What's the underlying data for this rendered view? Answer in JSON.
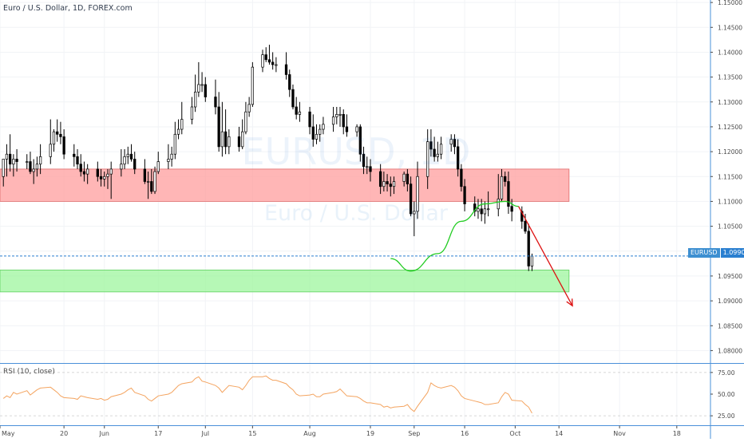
{
  "legend": {
    "text": "Euro / U.S. Dollar, 1D, FOREX.com"
  },
  "watermark": {
    "line1": "EURUSD, 1D",
    "line2": "Euro / U.S. Dollar"
  },
  "rsi": {
    "label": "RSI (10, close)",
    "ticks": [
      "75.00",
      "50.00",
      "25.00"
    ],
    "values": [
      75,
      50,
      25
    ]
  },
  "price_tag": {
    "symbol": "EURUSD",
    "value": "1.09901"
  },
  "colors": {
    "bull": "#ffffff",
    "bear": "#000000",
    "wick": "#000000",
    "resistance_zone": "#ff9d9d",
    "support_zone": "#9df59d",
    "projection_up": "#22cc22",
    "projection_down": "#dd1111",
    "price_line": "#2a7fd0",
    "rsi_line": "#f4a460",
    "axis_line": "#4a90d9",
    "text": "#4a4a4a"
  },
  "chart_data": {
    "type": "candlestick",
    "title": "Euro / U.S. Dollar, 1D, FOREX.com",
    "ylim": [
      1.0775,
      1.1505
    ],
    "y_ticks": [
      "1.15000",
      "1.14500",
      "1.14000",
      "1.13500",
      "1.13000",
      "1.12500",
      "1.12000",
      "1.11500",
      "1.11000",
      "1.10500",
      "1.10000",
      "1.09500",
      "1.09000",
      "1.08500",
      "1.08000"
    ],
    "x_ticks": [
      "May",
      "20",
      "Jun",
      "17",
      "Jul",
      "15",
      "Aug",
      "19",
      "Sep",
      "16",
      "Oct",
      "14",
      "Nov",
      "18"
    ],
    "x_tick_days": [
      0,
      19,
      31,
      47,
      61,
      75,
      92,
      110,
      123,
      138,
      153,
      166,
      184,
      201
    ],
    "x_range_days": [
      0,
      211
    ],
    "grid": true,
    "candles": {
      "o": [
        1.115,
        1.1185,
        1.1195,
        1.1175,
        1.1185,
        1.118,
        1.118,
        1.116,
        1.1165,
        1.1175,
        1.119,
        1.1215,
        1.124,
        1.1235,
        1.123,
        1.1195,
        1.119,
        1.1175,
        1.116,
        1.1155,
        1.1165,
        1.115,
        1.1145,
        1.115,
        1.1155,
        1.1165,
        1.1175,
        1.119,
        1.1195,
        1.1185,
        1.1165,
        1.114,
        1.114,
        1.112,
        1.116,
        1.118,
        1.1185,
        1.1195,
        1.1235,
        1.1245,
        1.1265,
        1.129,
        1.132,
        1.1335,
        1.1335,
        1.131,
        1.129,
        1.121,
        1.124,
        1.121,
        1.123,
        1.121,
        1.124,
        1.128,
        1.1295,
        1.137,
        1.1395,
        1.1385,
        1.138,
        1.1375,
        1.1375,
        1.1355,
        1.1325,
        1.129,
        1.1275,
        1.128,
        1.125,
        1.1225,
        1.1235,
        1.1245,
        1.1255,
        1.127,
        1.1275,
        1.1275,
        1.125,
        1.124,
        1.125,
        1.1195,
        1.117,
        1.117,
        1.116,
        1.113,
        1.114,
        1.1135,
        1.113,
        1.114,
        1.1155,
        1.1135,
        1.1075,
        1.108,
        1.115,
        1.122,
        1.1205,
        1.119,
        1.1195,
        1.1215,
        1.1225,
        1.121,
        1.1165,
        1.113,
        1.1095,
        1.108,
        1.1085,
        1.1075,
        1.1085,
        1.1085,
        1.1105,
        1.115,
        1.114,
        1.109,
        1.108,
        1.106,
        1.104,
        1.097
      ],
      "h": [
        1.1175,
        1.1215,
        1.1235,
        1.1195,
        1.1205,
        1.1195,
        1.12,
        1.1185,
        1.119,
        1.1215,
        1.1265,
        1.1245,
        1.1265,
        1.126,
        1.1245,
        1.1215,
        1.1205,
        1.1195,
        1.118,
        1.1175,
        1.118,
        1.1165,
        1.116,
        1.1165,
        1.118,
        1.1205,
        1.1205,
        1.121,
        1.1215,
        1.12,
        1.1185,
        1.116,
        1.1165,
        1.117,
        1.12,
        1.1215,
        1.121,
        1.126,
        1.1265,
        1.13,
        1.131,
        1.1355,
        1.138,
        1.136,
        1.135,
        1.1345,
        1.132,
        1.13,
        1.1285,
        1.1245,
        1.125,
        1.1265,
        1.13,
        1.131,
        1.138,
        1.1405,
        1.141,
        1.1415,
        1.14,
        1.139,
        1.14,
        1.1365,
        1.1335,
        1.131,
        1.13,
        1.129,
        1.1275,
        1.1255,
        1.1255,
        1.127,
        1.129,
        1.129,
        1.129,
        1.1285,
        1.1275,
        1.1255,
        1.1255,
        1.121,
        1.119,
        1.1185,
        1.1175,
        1.116,
        1.1155,
        1.115,
        1.115,
        1.116,
        1.1165,
        1.115,
        1.11,
        1.118,
        1.1245,
        1.1245,
        1.123,
        1.122,
        1.123,
        1.1235,
        1.1235,
        1.1225,
        1.1175,
        1.1145,
        1.111,
        1.1105,
        1.1105,
        1.11,
        1.112,
        1.1155,
        1.1165,
        1.116,
        1.116,
        1.1105,
        1.109,
        1.1075,
        1.1055,
        1.0995
      ],
      "l": [
        1.113,
        1.115,
        1.116,
        1.115,
        1.116,
        1.1165,
        1.1155,
        1.1135,
        1.115,
        1.1155,
        1.1175,
        1.12,
        1.122,
        1.1215,
        1.1185,
        1.117,
        1.1165,
        1.115,
        1.114,
        1.1135,
        1.114,
        1.113,
        1.113,
        1.1125,
        1.1105,
        1.115,
        1.1165,
        1.1175,
        1.118,
        1.1155,
        1.1135,
        1.1105,
        1.1115,
        1.1115,
        1.1155,
        1.1165,
        1.117,
        1.1185,
        1.1225,
        1.1235,
        1.1255,
        1.128,
        1.131,
        1.132,
        1.13,
        1.1275,
        1.12,
        1.119,
        1.1195,
        1.1195,
        1.12,
        1.1205,
        1.1235,
        1.127,
        1.129,
        1.136,
        1.138,
        1.1375,
        1.1365,
        1.136,
        1.1345,
        1.131,
        1.1285,
        1.1265,
        1.126,
        1.1235,
        1.121,
        1.1215,
        1.122,
        1.1235,
        1.124,
        1.1255,
        1.125,
        1.1235,
        1.123,
        1.123,
        1.118,
        1.1155,
        1.1155,
        1.114,
        1.1115,
        1.112,
        1.112,
        1.111,
        1.1115,
        1.113,
        1.112,
        1.107,
        1.103,
        1.1065,
        1.1125,
        1.119,
        1.118,
        1.118,
        1.1185,
        1.12,
        1.1195,
        1.115,
        1.112,
        1.108,
        1.107,
        1.1065,
        1.106,
        1.1055,
        1.107,
        1.107,
        1.11,
        1.113,
        1.1075,
        1.106,
        1.1045,
        1.1035,
        1.096,
        1.096
      ],
      "c": [
        1.1185,
        1.1195,
        1.1175,
        1.1185,
        1.118,
        1.118,
        1.116,
        1.1165,
        1.1175,
        1.119,
        1.1215,
        1.124,
        1.1235,
        1.123,
        1.1195,
        1.119,
        1.1175,
        1.116,
        1.1155,
        1.1165,
        1.115,
        1.1145,
        1.115,
        1.1155,
        1.1165,
        1.1175,
        1.119,
        1.1195,
        1.1185,
        1.1165,
        1.114,
        1.114,
        1.112,
        1.116,
        1.118,
        1.1185,
        1.1195,
        1.1235,
        1.1245,
        1.1265,
        1.129,
        1.132,
        1.1335,
        1.1335,
        1.131,
        1.129,
        1.121,
        1.124,
        1.121,
        1.123,
        1.121,
        1.124,
        1.128,
        1.1295,
        1.137,
        1.1395,
        1.1385,
        1.138,
        1.1375,
        1.1375,
        1.1355,
        1.1325,
        1.129,
        1.1275,
        1.128,
        1.125,
        1.1225,
        1.1235,
        1.1245,
        1.1255,
        1.127,
        1.1275,
        1.1275,
        1.125,
        1.124,
        1.125,
        1.1195,
        1.117,
        1.117,
        1.116,
        1.113,
        1.114,
        1.1135,
        1.113,
        1.114,
        1.1155,
        1.1135,
        1.1075,
        1.108,
        1.115,
        1.122,
        1.1205,
        1.119,
        1.1195,
        1.1215,
        1.1225,
        1.121,
        1.1165,
        1.113,
        1.1095,
        1.108,
        1.1085,
        1.1075,
        1.1085,
        1.1085,
        1.1105,
        1.115,
        1.114,
        1.109,
        1.108,
        1.106,
        1.104,
        1.097,
        1.099
      ]
    },
    "zones": [
      {
        "name": "resistance",
        "from_day": 0,
        "to_day": 169,
        "y_low": 1.11,
        "y_high": 1.1165
      },
      {
        "name": "support",
        "from_day": 0,
        "to_day": 169,
        "y_low": 1.0918,
        "y_high": 1.0962
      }
    ],
    "current_price": 1.09901,
    "projection": {
      "up_leg": [
        [
          116,
          1.0985
        ],
        [
          122,
          1.096
        ],
        [
          130,
          1.0995
        ],
        [
          137,
          1.106
        ],
        [
          144,
          1.1095
        ],
        [
          150,
          1.11
        ],
        [
          154,
          1.109
        ]
      ],
      "down_leg": [
        [
          154,
          1.109
        ],
        [
          170,
          1.089
        ]
      ]
    },
    "rsi": {
      "ylim": [
        15,
        85
      ],
      "values": [
        45,
        48,
        46,
        52,
        50,
        54,
        49,
        52,
        55,
        57,
        58,
        55,
        52,
        48,
        46,
        45,
        44,
        48,
        47,
        46,
        44,
        45,
        43,
        44,
        47,
        50,
        52,
        55,
        57,
        52,
        48,
        44,
        42,
        45,
        48,
        50,
        52,
        56,
        60,
        62,
        64,
        68,
        70,
        65,
        64,
        60,
        57,
        52,
        56,
        60,
        58,
        55,
        60,
        66,
        70,
        70,
        71,
        68,
        66,
        66,
        62,
        58,
        55,
        50,
        48,
        49,
        50,
        47,
        47,
        50,
        52,
        53,
        56,
        52,
        48,
        47,
        45,
        42,
        40,
        40,
        38,
        35,
        36,
        34,
        35,
        36,
        38,
        33,
        30,
        36,
        52,
        63,
        60,
        58,
        57,
        60,
        58,
        54,
        48,
        45,
        42,
        41,
        40,
        38,
        38,
        40,
        47,
        52,
        50,
        43,
        42,
        38,
        35,
        28,
        27
      ]
    }
  }
}
